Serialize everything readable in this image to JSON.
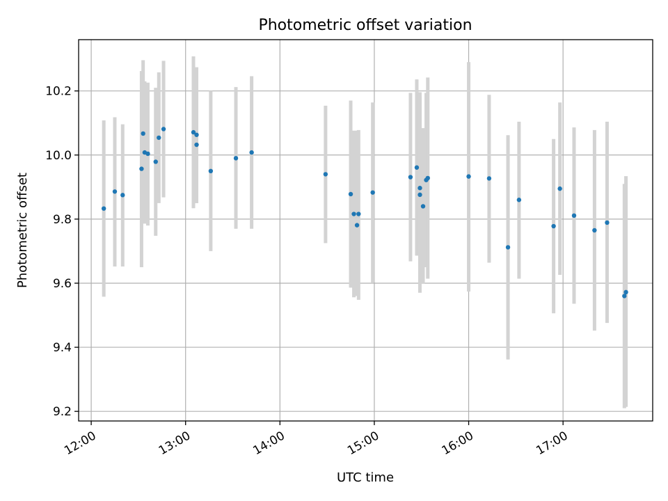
{
  "chart_data": {
    "type": "scatter",
    "title": "Photometric offset variation",
    "xlabel": "UTC time",
    "ylabel": "Photometric offset",
    "xlim": [
      "11:52",
      "17:57"
    ],
    "ylim": [
      9.17,
      10.36
    ],
    "xticks": [
      "12:00",
      "13:00",
      "14:00",
      "15:00",
      "16:00",
      "17:00"
    ],
    "yticks": [
      "9.2",
      "9.4",
      "9.6",
      "9.8",
      "10.0",
      "10.2"
    ],
    "grid": true,
    "marker_color": "#1f77b4",
    "errorbar_color": "#d3d3d3",
    "points": [
      {
        "t": "12:08",
        "y": 9.833,
        "lo": 9.558,
        "hi": 10.108
      },
      {
        "t": "12:15",
        "y": 9.886,
        "lo": 9.652,
        "hi": 10.118
      },
      {
        "t": "12:20",
        "y": 9.875,
        "lo": 9.652,
        "hi": 10.096
      },
      {
        "t": "12:32",
        "y": 9.957,
        "lo": 9.65,
        "hi": 10.262
      },
      {
        "t": "12:33",
        "y": 10.067,
        "lo": 9.836,
        "hi": 10.296
      },
      {
        "t": "12:34",
        "y": 10.008,
        "lo": 9.786,
        "hi": 10.23
      },
      {
        "t": "12:36",
        "y": 10.004,
        "lo": 9.78,
        "hi": 10.226
      },
      {
        "t": "12:41",
        "y": 9.979,
        "lo": 9.748,
        "hi": 10.21
      },
      {
        "t": "12:43",
        "y": 10.054,
        "lo": 9.85,
        "hi": 10.258
      },
      {
        "t": "12:46",
        "y": 10.081,
        "lo": 9.868,
        "hi": 10.294
      },
      {
        "t": "13:05",
        "y": 10.071,
        "lo": 9.834,
        "hi": 10.308
      },
      {
        "t": "13:07",
        "y": 10.063,
        "lo": 9.85,
        "hi": 10.274
      },
      {
        "t": "13:07",
        "y": 10.032,
        "lo": 9.85,
        "hi": 10.214
      },
      {
        "t": "13:16",
        "y": 9.95,
        "lo": 9.7,
        "hi": 10.2
      },
      {
        "t": "13:32",
        "y": 9.99,
        "lo": 9.77,
        "hi": 10.212
      },
      {
        "t": "13:42",
        "y": 10.008,
        "lo": 9.77,
        "hi": 10.246
      },
      {
        "t": "14:29",
        "y": 9.94,
        "lo": 9.725,
        "hi": 10.154
      },
      {
        "t": "14:45",
        "y": 9.878,
        "lo": 9.586,
        "hi": 10.17
      },
      {
        "t": "14:47",
        "y": 9.816,
        "lo": 9.556,
        "hi": 10.076
      },
      {
        "t": "14:49",
        "y": 9.781,
        "lo": 9.56,
        "hi": 10.076
      },
      {
        "t": "14:50",
        "y": 9.816,
        "lo": 9.548,
        "hi": 10.078
      },
      {
        "t": "14:59",
        "y": 9.883,
        "lo": 9.602,
        "hi": 10.164
      },
      {
        "t": "15:23",
        "y": 9.931,
        "lo": 9.668,
        "hi": 10.194
      },
      {
        "t": "15:27",
        "y": 9.961,
        "lo": 9.686,
        "hi": 10.236
      },
      {
        "t": "15:29",
        "y": 9.876,
        "lo": 9.57,
        "hi": 10.182
      },
      {
        "t": "15:29",
        "y": 9.897,
        "lo": 9.598,
        "hi": 10.196
      },
      {
        "t": "15:31",
        "y": 9.84,
        "lo": 9.598,
        "hi": 10.084
      },
      {
        "t": "15:33",
        "y": 9.922,
        "lo": 9.65,
        "hi": 10.194
      },
      {
        "t": "15:34",
        "y": 9.928,
        "lo": 9.614,
        "hi": 10.242
      },
      {
        "t": "16:00",
        "y": 9.933,
        "lo": 9.574,
        "hi": 10.29
      },
      {
        "t": "16:13",
        "y": 9.927,
        "lo": 9.664,
        "hi": 10.188
      },
      {
        "t": "16:25",
        "y": 9.712,
        "lo": 9.362,
        "hi": 10.062
      },
      {
        "t": "16:32",
        "y": 9.86,
        "lo": 9.614,
        "hi": 10.104
      },
      {
        "t": "16:54",
        "y": 9.778,
        "lo": 9.506,
        "hi": 10.05
      },
      {
        "t": "16:58",
        "y": 9.895,
        "lo": 9.626,
        "hi": 10.164
      },
      {
        "t": "17:07",
        "y": 9.811,
        "lo": 9.536,
        "hi": 10.086
      },
      {
        "t": "17:20",
        "y": 9.765,
        "lo": 9.452,
        "hi": 10.078
      },
      {
        "t": "17:28",
        "y": 9.789,
        "lo": 9.476,
        "hi": 10.104
      },
      {
        "t": "17:39",
        "y": 9.56,
        "lo": 9.21,
        "hi": 9.91
      },
      {
        "t": "17:40",
        "y": 9.572,
        "lo": 9.214,
        "hi": 9.934
      }
    ]
  }
}
